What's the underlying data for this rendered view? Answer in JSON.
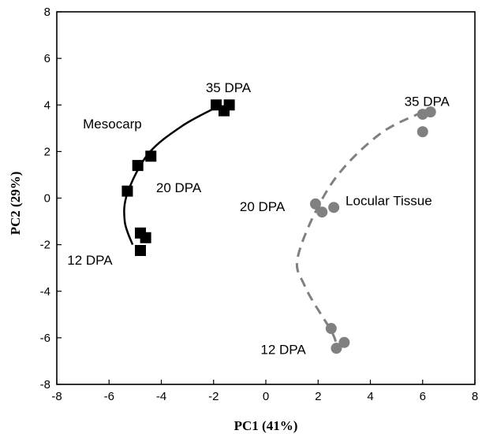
{
  "chart_data": {
    "type": "scatter",
    "xlabel": "PC1 (41%)",
    "ylabel": "PC2 (29%)",
    "xlim": [
      -8,
      8
    ],
    "ylim": [
      -8,
      8
    ],
    "xticks": [
      -8,
      -6,
      -4,
      -2,
      0,
      2,
      4,
      6,
      8
    ],
    "yticks": [
      -8,
      -6,
      -4,
      -2,
      0,
      2,
      4,
      6,
      8
    ],
    "grid": false,
    "series": [
      {
        "name": "Mesocarp",
        "marker": "square",
        "color": "#000000",
        "line_style": "solid",
        "points": [
          {
            "x": -1.9,
            "y": 4.0
          },
          {
            "x": -1.6,
            "y": 3.75
          },
          {
            "x": -1.4,
            "y": 4.0
          },
          {
            "x": -4.4,
            "y": 1.8
          },
          {
            "x": -4.9,
            "y": 1.4
          },
          {
            "x": -5.3,
            "y": 0.3
          },
          {
            "x": -4.8,
            "y": -1.5
          },
          {
            "x": -4.6,
            "y": -1.7
          },
          {
            "x": -4.8,
            "y": -2.25
          }
        ],
        "curve": [
          {
            "x": -1.8,
            "y": 3.95
          },
          {
            "x": -3.2,
            "y": 3.1
          },
          {
            "x": -4.5,
            "y": 1.9
          },
          {
            "x": -5.3,
            "y": 0.2
          },
          {
            "x": -5.4,
            "y": -1.0
          },
          {
            "x": -5.1,
            "y": -2.0
          }
        ]
      },
      {
        "name": "Locular Tissue",
        "marker": "circle",
        "color": "#808080",
        "line_style": "dashed",
        "points": [
          {
            "x": 6.0,
            "y": 3.6
          },
          {
            "x": 6.3,
            "y": 3.7
          },
          {
            "x": 6.0,
            "y": 2.85
          },
          {
            "x": 1.9,
            "y": -0.25
          },
          {
            "x": 2.6,
            "y": -0.4
          },
          {
            "x": 2.15,
            "y": -0.6
          },
          {
            "x": 2.5,
            "y": -5.6
          },
          {
            "x": 3.0,
            "y": -6.2
          },
          {
            "x": 2.7,
            "y": -6.45
          }
        ],
        "curve": [
          {
            "x": 6.0,
            "y": 3.7
          },
          {
            "x": 4.3,
            "y": 2.7
          },
          {
            "x": 2.5,
            "y": 0.6
          },
          {
            "x": 1.25,
            "y": -2.4
          },
          {
            "x": 1.5,
            "y": -3.8
          },
          {
            "x": 2.5,
            "y": -5.7
          },
          {
            "x": 2.7,
            "y": -6.3
          }
        ]
      }
    ],
    "annotations": [
      {
        "text": "35 DPA",
        "x": -2.3,
        "y": 4.55
      },
      {
        "text": "Mesocarp",
        "x": -7.0,
        "y": 3.0
      },
      {
        "text": "20 DPA",
        "x": -4.2,
        "y": 0.25
      },
      {
        "text": "12 DPA",
        "x": -7.6,
        "y": -2.85
      },
      {
        "text": "35 DPA",
        "x": 5.3,
        "y": 3.95
      },
      {
        "text": "20 DPA",
        "x": -1.0,
        "y": -0.55
      },
      {
        "text": "Locular Tissue",
        "x": 3.05,
        "y": -0.3
      },
      {
        "text": "12 DPA",
        "x": -0.2,
        "y": -6.7
      }
    ]
  }
}
